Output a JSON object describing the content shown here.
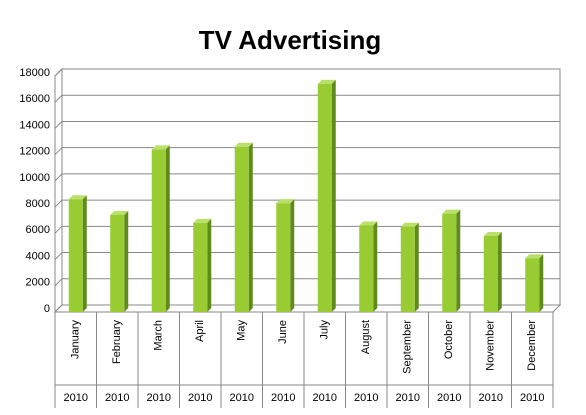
{
  "chart_data": {
    "type": "bar3d",
    "title": "TV Advertising",
    "categories": [
      "January",
      "February",
      "March",
      "April",
      "May",
      "June",
      "July",
      "August",
      "September",
      "October",
      "November",
      "December"
    ],
    "category_groups": [
      "2010",
      "2010",
      "2010",
      "2010",
      "2010",
      "2010",
      "2010",
      "2010",
      "2010",
      "2010",
      "2010",
      "2010"
    ],
    "values": [
      8600,
      7400,
      12400,
      6800,
      12600,
      8300,
      17400,
      6600,
      6500,
      7500,
      5800,
      4100
    ],
    "color": "#99cc33",
    "ylim": [
      0,
      18000
    ],
    "yticks": [
      0,
      2000,
      4000,
      6000,
      8000,
      10000,
      12000,
      14000,
      16000,
      18000
    ],
    "grid": true
  }
}
